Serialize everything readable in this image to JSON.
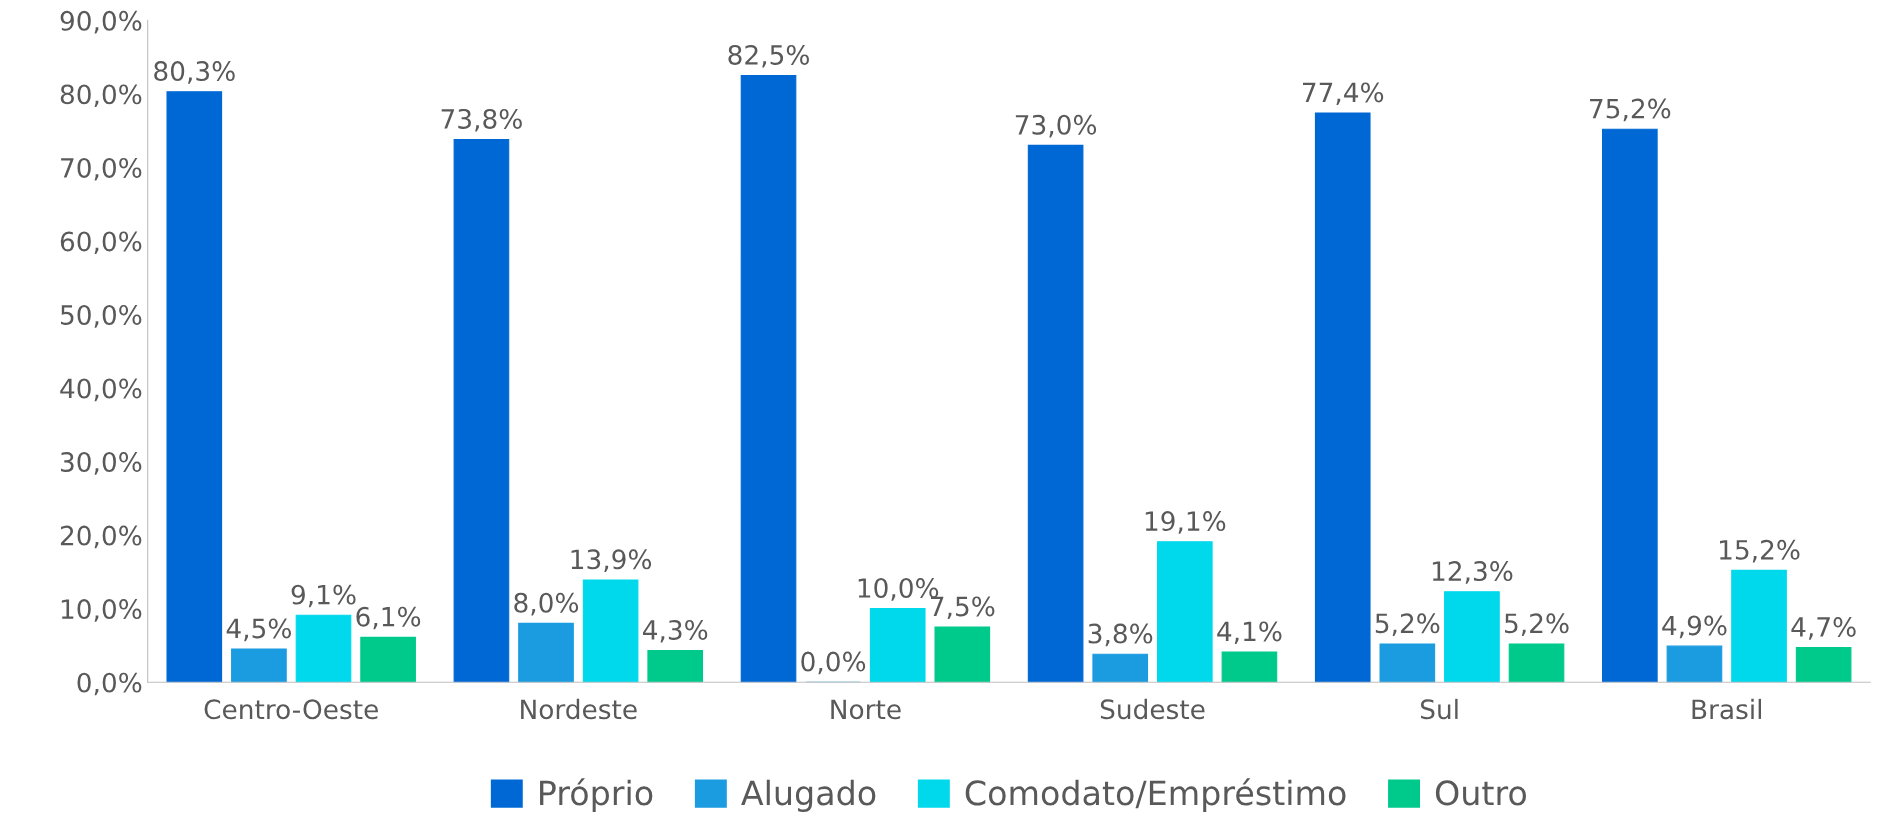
{
  "chart_data": {
    "type": "bar",
    "categories": [
      "Centro-Oeste",
      "Nordeste",
      "Norte",
      "Sudeste",
      "Sul",
      "Brasil"
    ],
    "series": [
      {
        "name": "Próprio",
        "color": "#0068d4",
        "values": [
          80.3,
          73.8,
          82.5,
          73.0,
          77.4,
          75.2
        ],
        "value_labels": [
          "80,3%",
          "73,8%",
          "82,5%",
          "73,0%",
          "77,4%",
          "75,2%"
        ]
      },
      {
        "name": "Alugado",
        "color": "#1b9be0",
        "values": [
          4.5,
          8.0,
          0.0,
          3.8,
          5.2,
          4.9
        ],
        "value_labels": [
          "4,5%",
          "8,0%",
          "0,0%",
          "3,8%",
          "5,2%",
          "4,9%"
        ]
      },
      {
        "name": "Comodato/Empréstimo",
        "color": "#00d8ec",
        "values": [
          9.1,
          13.9,
          10.0,
          19.1,
          12.3,
          15.2
        ],
        "value_labels": [
          "9,1%",
          "13,9%",
          "10,0%",
          "19,1%",
          "12,3%",
          "15,2%"
        ]
      },
      {
        "name": "Outro",
        "color": "#00c98c",
        "values": [
          6.1,
          4.3,
          7.5,
          4.1,
          5.2,
          4.7
        ],
        "value_labels": [
          "6,1%",
          "4,3%",
          "7,5%",
          "4,1%",
          "5,2%",
          "4,7%"
        ]
      }
    ],
    "ylim": [
      0,
      90
    ],
    "yticks": [
      {
        "value": 0,
        "label": "0,0%"
      },
      {
        "value": 10,
        "label": "10,0%"
      },
      {
        "value": 20,
        "label": "20,0%"
      },
      {
        "value": 30,
        "label": "30,0%"
      },
      {
        "value": 40,
        "label": "40,0%"
      },
      {
        "value": 50,
        "label": "50,0%"
      },
      {
        "value": 60,
        "label": "60,0%"
      },
      {
        "value": 70,
        "label": "70,0%"
      },
      {
        "value": 80,
        "label": "80,0%"
      },
      {
        "value": 90,
        "label": "90,0%"
      }
    ],
    "grid": false,
    "legend": "bottom"
  }
}
